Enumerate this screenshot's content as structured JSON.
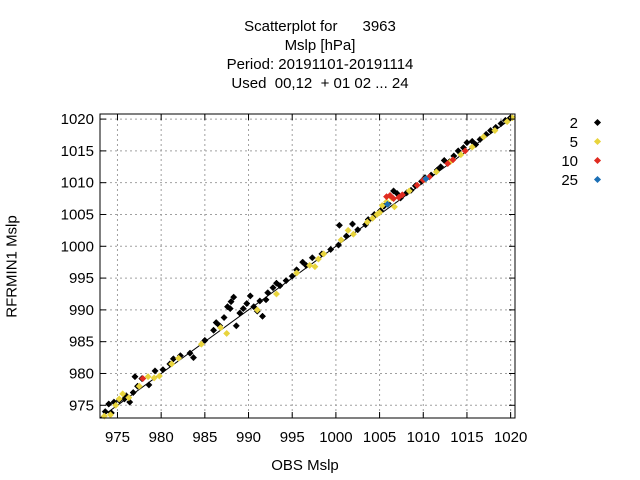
{
  "title": {
    "line1": "Scatterplot for      3963",
    "line2": "Mslp [hPa]",
    "line3": "Period: 20191101-20191114",
    "line4": "Used  00,12  + 01 02 ... 24"
  },
  "chart_data": {
    "type": "scatter",
    "xlabel": "OBS Mslp",
    "ylabel": "RFRMIN1 Mslp",
    "xlim": [
      973,
      1020.5
    ],
    "ylim": [
      973,
      1020.8
    ],
    "xticks": [
      975,
      980,
      985,
      990,
      995,
      1000,
      1005,
      1010,
      1015,
      1020
    ],
    "yticks": [
      975,
      980,
      985,
      990,
      995,
      1000,
      1005,
      1010,
      1015,
      1020
    ],
    "grid": true,
    "legend_position": "right",
    "series": [
      {
        "name": "2",
        "color": "#000000",
        "points": [
          [
            973.6,
            974.0
          ],
          [
            974.0,
            975.2
          ],
          [
            974.6,
            975.5
          ],
          [
            975.2,
            975.8
          ],
          [
            974.3,
            973.8
          ],
          [
            975.8,
            976.0
          ],
          [
            976.4,
            975.5
          ],
          [
            976.8,
            977.0
          ],
          [
            976.0,
            976.5
          ],
          [
            977.0,
            979.5
          ],
          [
            977.3,
            978.0
          ],
          [
            977.8,
            979.2
          ],
          [
            978.6,
            978.2
          ],
          [
            979.3,
            980.4
          ],
          [
            980.2,
            980.6
          ],
          [
            981.0,
            981.5
          ],
          [
            981.4,
            982.3
          ],
          [
            982.2,
            982.8
          ],
          [
            983.3,
            983.2
          ],
          [
            983.7,
            982.5
          ],
          [
            985.0,
            985.2
          ],
          [
            986.0,
            986.8
          ],
          [
            986.3,
            988.0
          ],
          [
            986.7,
            987.5
          ],
          [
            987.2,
            988.8
          ],
          [
            987.6,
            990.5
          ],
          [
            988.0,
            991.3
          ],
          [
            988.3,
            992.0
          ],
          [
            987.9,
            990.2
          ],
          [
            988.6,
            987.5
          ],
          [
            989.0,
            989.5
          ],
          [
            989.4,
            990.2
          ],
          [
            989.8,
            991.0
          ],
          [
            990.2,
            992.2
          ],
          [
            990.6,
            990.5
          ],
          [
            991.0,
            989.8
          ],
          [
            991.3,
            991.4
          ],
          [
            991.6,
            989.0
          ],
          [
            992.0,
            991.6
          ],
          [
            992.2,
            992.7
          ],
          [
            992.8,
            993.5
          ],
          [
            993.2,
            994.2
          ],
          [
            993.6,
            993.8
          ],
          [
            994.3,
            994.6
          ],
          [
            995.0,
            995.3
          ],
          [
            995.5,
            996.3
          ],
          [
            996.2,
            997.5
          ],
          [
            996.6,
            997.0
          ],
          [
            997.3,
            998.2
          ],
          [
            998.4,
            998.8
          ],
          [
            999.4,
            999.5
          ],
          [
            1000.3,
            1000.2
          ],
          [
            1000.4,
            1003.3
          ],
          [
            1001.2,
            1001.6
          ],
          [
            1001.9,
            1003.5
          ],
          [
            1002.5,
            1002.6
          ],
          [
            1003.4,
            1003.4
          ],
          [
            1003.7,
            1004.2
          ],
          [
            1004.4,
            1005.0
          ],
          [
            1005.1,
            1005.6
          ],
          [
            1005.5,
            1006.3
          ],
          [
            1006.0,
            1006.7
          ],
          [
            1006.6,
            1008.7
          ],
          [
            1007.0,
            1008.3
          ],
          [
            1007.4,
            1007.6
          ],
          [
            1008.1,
            1008.4
          ],
          [
            1008.6,
            1008.8
          ],
          [
            1009.1,
            1009.5
          ],
          [
            1009.8,
            1010.2
          ],
          [
            1010.2,
            1010.8
          ],
          [
            1010.9,
            1011.2
          ],
          [
            1011.6,
            1012.0
          ],
          [
            1012.0,
            1012.5
          ],
          [
            1012.4,
            1013.5
          ],
          [
            1013.0,
            1013.3
          ],
          [
            1013.5,
            1014.2
          ],
          [
            1014.0,
            1015.0
          ],
          [
            1014.6,
            1015.5
          ],
          [
            1015.0,
            1016.3
          ],
          [
            1015.6,
            1016.5
          ],
          [
            1016.0,
            1016.0
          ],
          [
            1016.5,
            1016.8
          ],
          [
            1017.2,
            1017.6
          ],
          [
            1017.7,
            1018.2
          ],
          [
            1018.3,
            1018.7
          ],
          [
            1018.9,
            1019.3
          ],
          [
            1019.4,
            1019.8
          ],
          [
            1019.9,
            1020.1
          ]
        ]
      },
      {
        "name": "5",
        "color": "#e8d43c",
        "points": [
          [
            973.5,
            973.3
          ],
          [
            974.2,
            973.5
          ],
          [
            974.8,
            975.0
          ],
          [
            975.2,
            976.0
          ],
          [
            975.6,
            976.8
          ],
          [
            976.3,
            976.2
          ],
          [
            977.5,
            978.0
          ],
          [
            978.5,
            979.5
          ],
          [
            979.2,
            979.3
          ],
          [
            979.8,
            979.6
          ],
          [
            981.2,
            981.5
          ],
          [
            982.0,
            982.4
          ],
          [
            984.6,
            984.6
          ],
          [
            986.8,
            987.2
          ],
          [
            987.5,
            986.3
          ],
          [
            991.0,
            990.0
          ],
          [
            993.2,
            992.5
          ],
          [
            995.5,
            995.8
          ],
          [
            997.0,
            997.0
          ],
          [
            997.6,
            996.8
          ],
          [
            998.0,
            998.0
          ],
          [
            998.6,
            998.8
          ],
          [
            1000.6,
            1001.0
          ],
          [
            1001.4,
            1002.5
          ],
          [
            1002.0,
            1001.9
          ],
          [
            1003.6,
            1003.8
          ],
          [
            1004.2,
            1004.4
          ],
          [
            1004.7,
            1005.0
          ],
          [
            1005.0,
            1005.3
          ],
          [
            1005.3,
            1006.4
          ],
          [
            1005.8,
            1007.0
          ],
          [
            1006.4,
            1007.6
          ],
          [
            1006.7,
            1006.2
          ],
          [
            1008.4,
            1008.7
          ],
          [
            1010.2,
            1010.5
          ],
          [
            1011.5,
            1011.7
          ],
          [
            1013.1,
            1013.3
          ],
          [
            1014.3,
            1014.4
          ],
          [
            1015.6,
            1015.6
          ],
          [
            1016.9,
            1017.2
          ],
          [
            1018.2,
            1018.2
          ],
          [
            1019.6,
            1019.6
          ],
          [
            1020.2,
            1020.2
          ]
        ]
      },
      {
        "name": "10",
        "color": "#e02b20",
        "points": [
          [
            977.9,
            979.2
          ],
          [
            1005.8,
            1007.8
          ],
          [
            1006.2,
            1008.0
          ],
          [
            1006.6,
            1007.5
          ],
          [
            1007.2,
            1007.7
          ],
          [
            1007.6,
            1008.1
          ],
          [
            1009.3,
            1009.6
          ],
          [
            1010.0,
            1010.4
          ],
          [
            1010.7,
            1010.9
          ],
          [
            1012.8,
            1013.0
          ],
          [
            1013.4,
            1013.6
          ],
          [
            1014.8,
            1015.0
          ]
        ]
      },
      {
        "name": "25",
        "color": "#1b6fb5",
        "points": [
          [
            1005.9,
            1006.6
          ],
          [
            1010.3,
            1010.6
          ]
        ]
      }
    ]
  }
}
